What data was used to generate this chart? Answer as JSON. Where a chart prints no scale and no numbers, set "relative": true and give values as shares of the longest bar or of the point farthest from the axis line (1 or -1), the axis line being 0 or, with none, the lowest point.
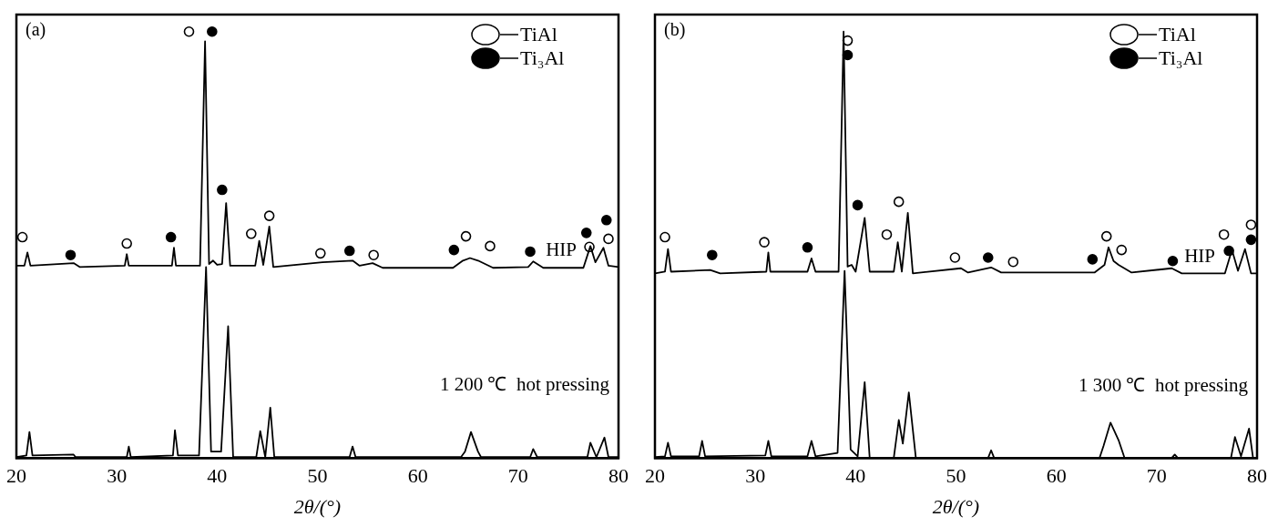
{
  "chart_data": [
    {
      "type": "line",
      "title": "(a)",
      "xlabel": "2θ/(°)",
      "relative": true,
      "xlim": [
        20,
        80
      ],
      "xticks": [
        20,
        30,
        40,
        50,
        60,
        70,
        80
      ],
      "legend": "top right",
      "grid": false,
      "series": [
        {
          "name": "HIP",
          "color": "#000000",
          "marker": "none",
          "x": [
            20,
            20.8,
            21.1,
            21.4,
            25.7,
            26.3,
            30.8,
            31.0,
            31.2,
            35.5,
            35.7,
            35.9,
            38.3,
            38.8,
            39.2,
            39.6,
            40.0,
            40.5,
            40.9,
            41.3,
            43.8,
            44.2,
            44.6,
            45.2,
            45.6,
            50.5,
            53.5,
            54.2,
            55.5,
            56.5,
            63.5,
            64.5,
            65.2,
            66.0,
            67.5,
            71.0,
            71.5,
            72.5,
            76.5,
            77.2,
            77.7,
            78.5,
            79.0,
            80
          ],
          "values": [
            0.451,
            0.451,
            0.482,
            0.451,
            0.457,
            0.448,
            0.451,
            0.478,
            0.451,
            0.451,
            0.493,
            0.451,
            0.451,
            0.977,
            0.455,
            0.463,
            0.453,
            0.455,
            0.598,
            0.451,
            0.451,
            0.509,
            0.453,
            0.543,
            0.448,
            0.459,
            0.463,
            0.451,
            0.457,
            0.446,
            0.446,
            0.463,
            0.469,
            0.463,
            0.446,
            0.448,
            0.461,
            0.446,
            0.446,
            0.497,
            0.459,
            0.493,
            0.451,
            0.448
          ]
        },
        {
          "name": "1 200 ℃  hot pressing",
          "color": "#000000",
          "marker": "none",
          "x": [
            20,
            21.0,
            21.3,
            21.6,
            25.7,
            25.9,
            31.0,
            31.2,
            31.4,
            35.6,
            35.8,
            36.1,
            38.2,
            38.9,
            39.4,
            40.4,
            41.1,
            41.6,
            43.9,
            44.3,
            44.8,
            45.3,
            45.7,
            53.2,
            53.5,
            53.8,
            64.3,
            64.7,
            65.3,
            66.0,
            66.3,
            71.2,
            71.5,
            71.9,
            76.9,
            77.2,
            77.8,
            78.6,
            79.0,
            80
          ],
          "values": [
            0.002,
            0.006,
            0.061,
            0.006,
            0.008,
            0.002,
            0.002,
            0.027,
            0.002,
            0.006,
            0.065,
            0.006,
            0.006,
            0.448,
            0.015,
            0.015,
            0.309,
            0.002,
            0.002,
            0.063,
            0.002,
            0.118,
            0.002,
            0.002,
            0.027,
            0.002,
            0.002,
            0.015,
            0.061,
            0.015,
            0.002,
            0.002,
            0.021,
            0.002,
            0.002,
            0.036,
            0.002,
            0.048,
            0.002,
            0.002
          ]
        },
        {
          "name": "TiAl",
          "type": "scatter",
          "color": "#ffffff",
          "marker": "circle",
          "x": [
            20.6,
            31.0,
            37.2,
            43.4,
            45.2,
            50.3,
            55.6,
            64.8,
            67.2,
            77.1,
            79.0
          ],
          "values": [
            0.518,
            0.503,
            1.0,
            0.526,
            0.568,
            0.48,
            0.476,
            0.52,
            0.497,
            0.495,
            0.514
          ]
        },
        {
          "name": "Ti₃Al",
          "type": "scatter",
          "color": "#000000",
          "marker": "circle",
          "x": [
            25.4,
            35.4,
            39.5,
            40.5,
            53.2,
            63.6,
            71.2,
            76.8,
            78.8
          ],
          "values": [
            0.476,
            0.518,
            1.0,
            0.629,
            0.486,
            0.488,
            0.484,
            0.528,
            0.558
          ]
        }
      ]
    },
    {
      "type": "line",
      "title": "(b)",
      "xlabel": "2θ/(°)",
      "relative": true,
      "xlim": [
        20,
        80
      ],
      "xticks": [
        20,
        30,
        40,
        50,
        60,
        70,
        80
      ],
      "legend": "top right",
      "grid": false,
      "series": [
        {
          "name": "HIP",
          "color": "#000000",
          "marker": "none",
          "x": [
            20,
            21.0,
            21.3,
            21.6,
            25.5,
            26.5,
            31.1,
            31.3,
            31.5,
            35.2,
            35.6,
            36.0,
            38.3,
            38.8,
            39.2,
            39.6,
            40.0,
            40.9,
            41.4,
            43.8,
            44.2,
            44.6,
            45.2,
            45.7,
            50.5,
            51.2,
            53.5,
            54.5,
            63.8,
            64.8,
            65.2,
            65.7,
            66.2,
            67.5,
            71.5,
            72.5,
            76.8,
            77.5,
            78.1,
            78.8,
            79.4,
            80
          ],
          "values": [
            0.433,
            0.437,
            0.49,
            0.437,
            0.441,
            0.433,
            0.437,
            0.482,
            0.437,
            0.437,
            0.468,
            0.437,
            0.437,
            1,
            0.449,
            0.453,
            0.437,
            0.563,
            0.437,
            0.437,
            0.506,
            0.437,
            0.575,
            0.433,
            0.445,
            0.435,
            0.447,
            0.435,
            0.435,
            0.453,
            0.494,
            0.462,
            0.453,
            0.435,
            0.445,
            0.433,
            0.433,
            0.488,
            0.439,
            0.49,
            0.433,
            0.433
          ]
        },
        {
          "name": "1 300 ℃  hot pressing",
          "color": "#000000",
          "marker": "none",
          "x": [
            20,
            21.0,
            21.3,
            21.6,
            24.4,
            24.7,
            25.0,
            31.0,
            31.3,
            31.6,
            35.2,
            35.6,
            36.0,
            38.2,
            38.9,
            39.5,
            40.2,
            40.9,
            41.4,
            43.8,
            44.3,
            44.7,
            45.3,
            46.0,
            53.2,
            53.5,
            53.8,
            64.3,
            64.7,
            65.4,
            66.2,
            66.8,
            71.5,
            71.8,
            72.1,
            77.4,
            77.8,
            78.4,
            79.2,
            79.6,
            80
          ],
          "values": [
            0.002,
            0.004,
            0.036,
            0.004,
            0.004,
            0.04,
            0.004,
            0.006,
            0.04,
            0.004,
            0.004,
            0.04,
            0.004,
            0.012,
            0.439,
            0.02,
            0.004,
            0.178,
            0,
            0,
            0.089,
            0.034,
            0.154,
            0,
            0,
            0.018,
            0,
            0,
            0.028,
            0.083,
            0.042,
            0,
            0,
            0.008,
            0,
            0,
            0.049,
            0.004,
            0.069,
            0,
            0
          ]
        },
        {
          "name": "TiAl",
          "type": "scatter",
          "color": "#ffffff",
          "marker": "circle",
          "x": [
            21.0,
            30.9,
            39.2,
            43.1,
            44.3,
            49.9,
            55.7,
            65.0,
            66.5,
            76.7,
            79.4
          ],
          "values": [
            0.518,
            0.506,
            0.979,
            0.524,
            0.601,
            0.47,
            0.46,
            0.52,
            0.488,
            0.524,
            0.547
          ]
        },
        {
          "name": "Ti₃Al",
          "type": "scatter",
          "color": "#000000",
          "marker": "circle",
          "x": [
            25.7,
            35.2,
            39.2,
            40.2,
            53.2,
            63.6,
            71.6,
            77.2,
            79.4
          ],
          "values": [
            0.476,
            0.494,
            0.945,
            0.593,
            0.47,
            0.466,
            0.462,
            0.486,
            0.512
          ]
        }
      ]
    }
  ]
}
